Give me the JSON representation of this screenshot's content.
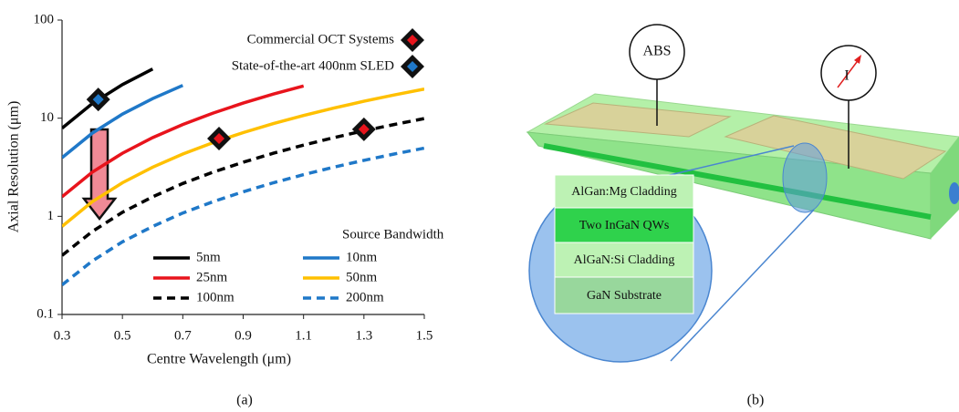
{
  "chart_data": {
    "type": "line",
    "x_label": "Centre Wavelength (μm)",
    "y_label": "Axial Resolution (μm)",
    "legend_title": "Source Bandwidth",
    "log_y": true,
    "x": [
      0.3,
      0.4,
      0.5,
      0.6,
      0.7,
      0.8,
      0.9,
      1.0,
      1.1,
      1.2,
      1.3,
      1.4,
      1.5
    ],
    "xlim": [
      0.3,
      1.5
    ],
    "xticks": [
      0.3,
      0.5,
      0.7,
      0.9,
      1.1,
      1.3,
      1.5
    ],
    "ylim": [
      0.1,
      100
    ],
    "yticks": [
      0.1,
      1,
      10,
      100
    ],
    "series": [
      {
        "name": "5nm",
        "color": "#000000",
        "dash": false,
        "values": [
          7.92,
          14.08,
          22,
          31.68,
          null,
          null,
          null,
          null,
          null,
          null,
          null,
          null,
          null
        ]
      },
      {
        "name": "10nm",
        "color": "#1f78c8",
        "dash": false,
        "values": [
          3.96,
          7.04,
          11,
          15.84,
          21.56,
          null,
          null,
          null,
          null,
          null,
          null,
          null,
          null
        ]
      },
      {
        "name": "25nm",
        "color": "#e8141c",
        "dash": false,
        "values": [
          1.58,
          2.82,
          4.4,
          6.34,
          8.62,
          11.26,
          14.26,
          17.6,
          21.3,
          null,
          null,
          null,
          null
        ]
      },
      {
        "name": "50nm",
        "color": "#ffc000",
        "dash": false,
        "values": [
          0.79,
          1.41,
          2.2,
          3.17,
          4.31,
          5.63,
          7.13,
          8.8,
          10.65,
          12.67,
          14.87,
          17.25,
          19.8
        ]
      },
      {
        "name": "100nm",
        "color": "#000000",
        "dash": true,
        "values": [
          0.4,
          0.7,
          1.1,
          1.58,
          2.16,
          2.82,
          3.56,
          4.4,
          5.32,
          6.34,
          7.44,
          8.62,
          9.9
        ]
      },
      {
        "name": "200nm",
        "color": "#1f78c8",
        "dash": true,
        "values": [
          0.2,
          0.35,
          0.55,
          0.79,
          1.08,
          1.41,
          1.78,
          2.2,
          2.66,
          3.17,
          3.72,
          4.31,
          4.95
        ]
      }
    ],
    "markers": [
      {
        "name": "Commercial OCT Systems",
        "color": "#e8141c",
        "x": [
          0.82,
          1.3
        ],
        "values": [
          6.2,
          7.7
        ]
      },
      {
        "name": "State-of-the-art 400nm SLED",
        "color": "#1f78c8",
        "x": [
          0.42
        ],
        "values": [
          15.5
        ]
      }
    ]
  },
  "diagram": {
    "probes": [
      "ABS",
      "I"
    ],
    "layers": [
      "AlGan:Mg  Cladding",
      "Two InGaN QWs",
      "AlGaN:Si Cladding",
      "GaN Substrate"
    ]
  },
  "captions": [
    "(a)",
    "(b)"
  ]
}
